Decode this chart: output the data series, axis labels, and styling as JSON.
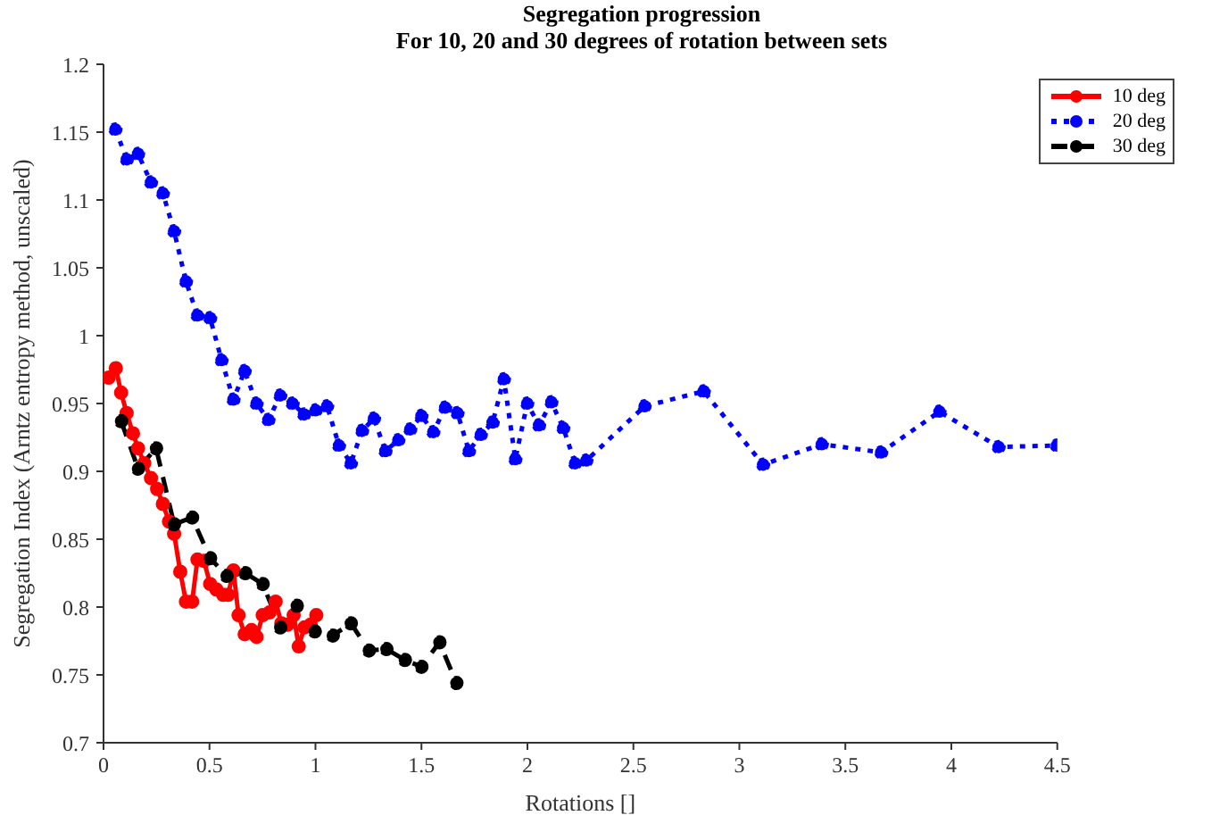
{
  "chart_data": {
    "type": "line",
    "title": "Segregation progression",
    "subtitle": "For 10, 20 and 30 degrees of rotation between sets",
    "xlabel": "Rotations []",
    "ylabel": "Segregation Index (Arntz entropy method, unscaled)",
    "xlim": [
      0,
      4.5
    ],
    "xticks": [
      0,
      0.5,
      1,
      1.5,
      2,
      2.5,
      3,
      3.5,
      4,
      4.5
    ],
    "ylim": [
      0.7,
      1.2
    ],
    "yticks": [
      0.7,
      0.75,
      0.8,
      0.85,
      0.9,
      0.95,
      1,
      1.05,
      1.1,
      1.15,
      1.2
    ],
    "grid": false,
    "legend": "top right",
    "marker": "circle",
    "series": [
      {
        "name": "10 deg",
        "color": "#ff0000",
        "line_style": "solid",
        "x": [
          0.024,
          0.058,
          0.083,
          0.109,
          0.139,
          0.163,
          0.192,
          0.224,
          0.253,
          0.28,
          0.309,
          0.333,
          0.362,
          0.389,
          0.418,
          0.443,
          0.474,
          0.503,
          0.532,
          0.564,
          0.588,
          0.613,
          0.637,
          0.666,
          0.698,
          0.722,
          0.751,
          0.783,
          0.812,
          0.839,
          0.868,
          0.897,
          0.921,
          0.948,
          0.977,
          1.004
        ],
        "values": [
          0.969,
          0.976,
          0.958,
          0.943,
          0.928,
          0.917,
          0.906,
          0.895,
          0.887,
          0.876,
          0.863,
          0.854,
          0.826,
          0.804,
          0.804,
          0.835,
          0.834,
          0.817,
          0.813,
          0.809,
          0.809,
          0.827,
          0.794,
          0.78,
          0.783,
          0.778,
          0.794,
          0.796,
          0.804,
          0.788,
          0.787,
          0.794,
          0.771,
          0.785,
          0.787,
          0.794
        ]
      },
      {
        "name": "20 deg",
        "color": "#0000ff",
        "line_style": "dotted",
        "x": [
          0.056,
          0.11,
          0.163,
          0.224,
          0.28,
          0.333,
          0.389,
          0.443,
          0.503,
          0.557,
          0.613,
          0.666,
          0.722,
          0.778,
          0.834,
          0.892,
          0.946,
          1.001,
          1.055,
          1.111,
          1.167,
          1.22,
          1.276,
          1.33,
          1.391,
          1.447,
          1.5,
          1.556,
          1.612,
          1.67,
          1.724,
          1.78,
          1.836,
          1.889,
          1.943,
          1.999,
          2.055,
          2.113,
          2.169,
          2.225,
          2.278,
          2.553,
          2.832,
          3.112,
          3.389,
          3.669,
          3.944,
          4.223,
          4.498
        ],
        "values": [
          1.152,
          1.13,
          1.134,
          1.113,
          1.105,
          1.077,
          1.04,
          1.015,
          1.013,
          0.982,
          0.953,
          0.974,
          0.95,
          0.938,
          0.956,
          0.95,
          0.942,
          0.945,
          0.948,
          0.919,
          0.906,
          0.93,
          0.939,
          0.915,
          0.923,
          0.931,
          0.941,
          0.929,
          0.947,
          0.943,
          0.915,
          0.927,
          0.936,
          0.968,
          0.909,
          0.95,
          0.934,
          0.951,
          0.932,
          0.906,
          0.908,
          0.948,
          0.959,
          0.905,
          0.92,
          0.914,
          0.944,
          0.918,
          0.919
        ]
      },
      {
        "name": "30 deg",
        "color": "#000000",
        "line_style": "dashed",
        "x": [
          0.083,
          0.163,
          0.248,
          0.333,
          0.418,
          0.503,
          0.581,
          0.669,
          0.751,
          0.834,
          0.912,
          0.997,
          1.082,
          1.167,
          1.252,
          1.335,
          1.422,
          1.5,
          1.585,
          1.665
        ],
        "values": [
          0.937,
          0.902,
          0.917,
          0.861,
          0.866,
          0.836,
          0.823,
          0.825,
          0.817,
          0.785,
          0.801,
          0.782,
          0.779,
          0.788,
          0.768,
          0.769,
          0.761,
          0.756,
          0.774,
          0.744
        ]
      }
    ]
  }
}
